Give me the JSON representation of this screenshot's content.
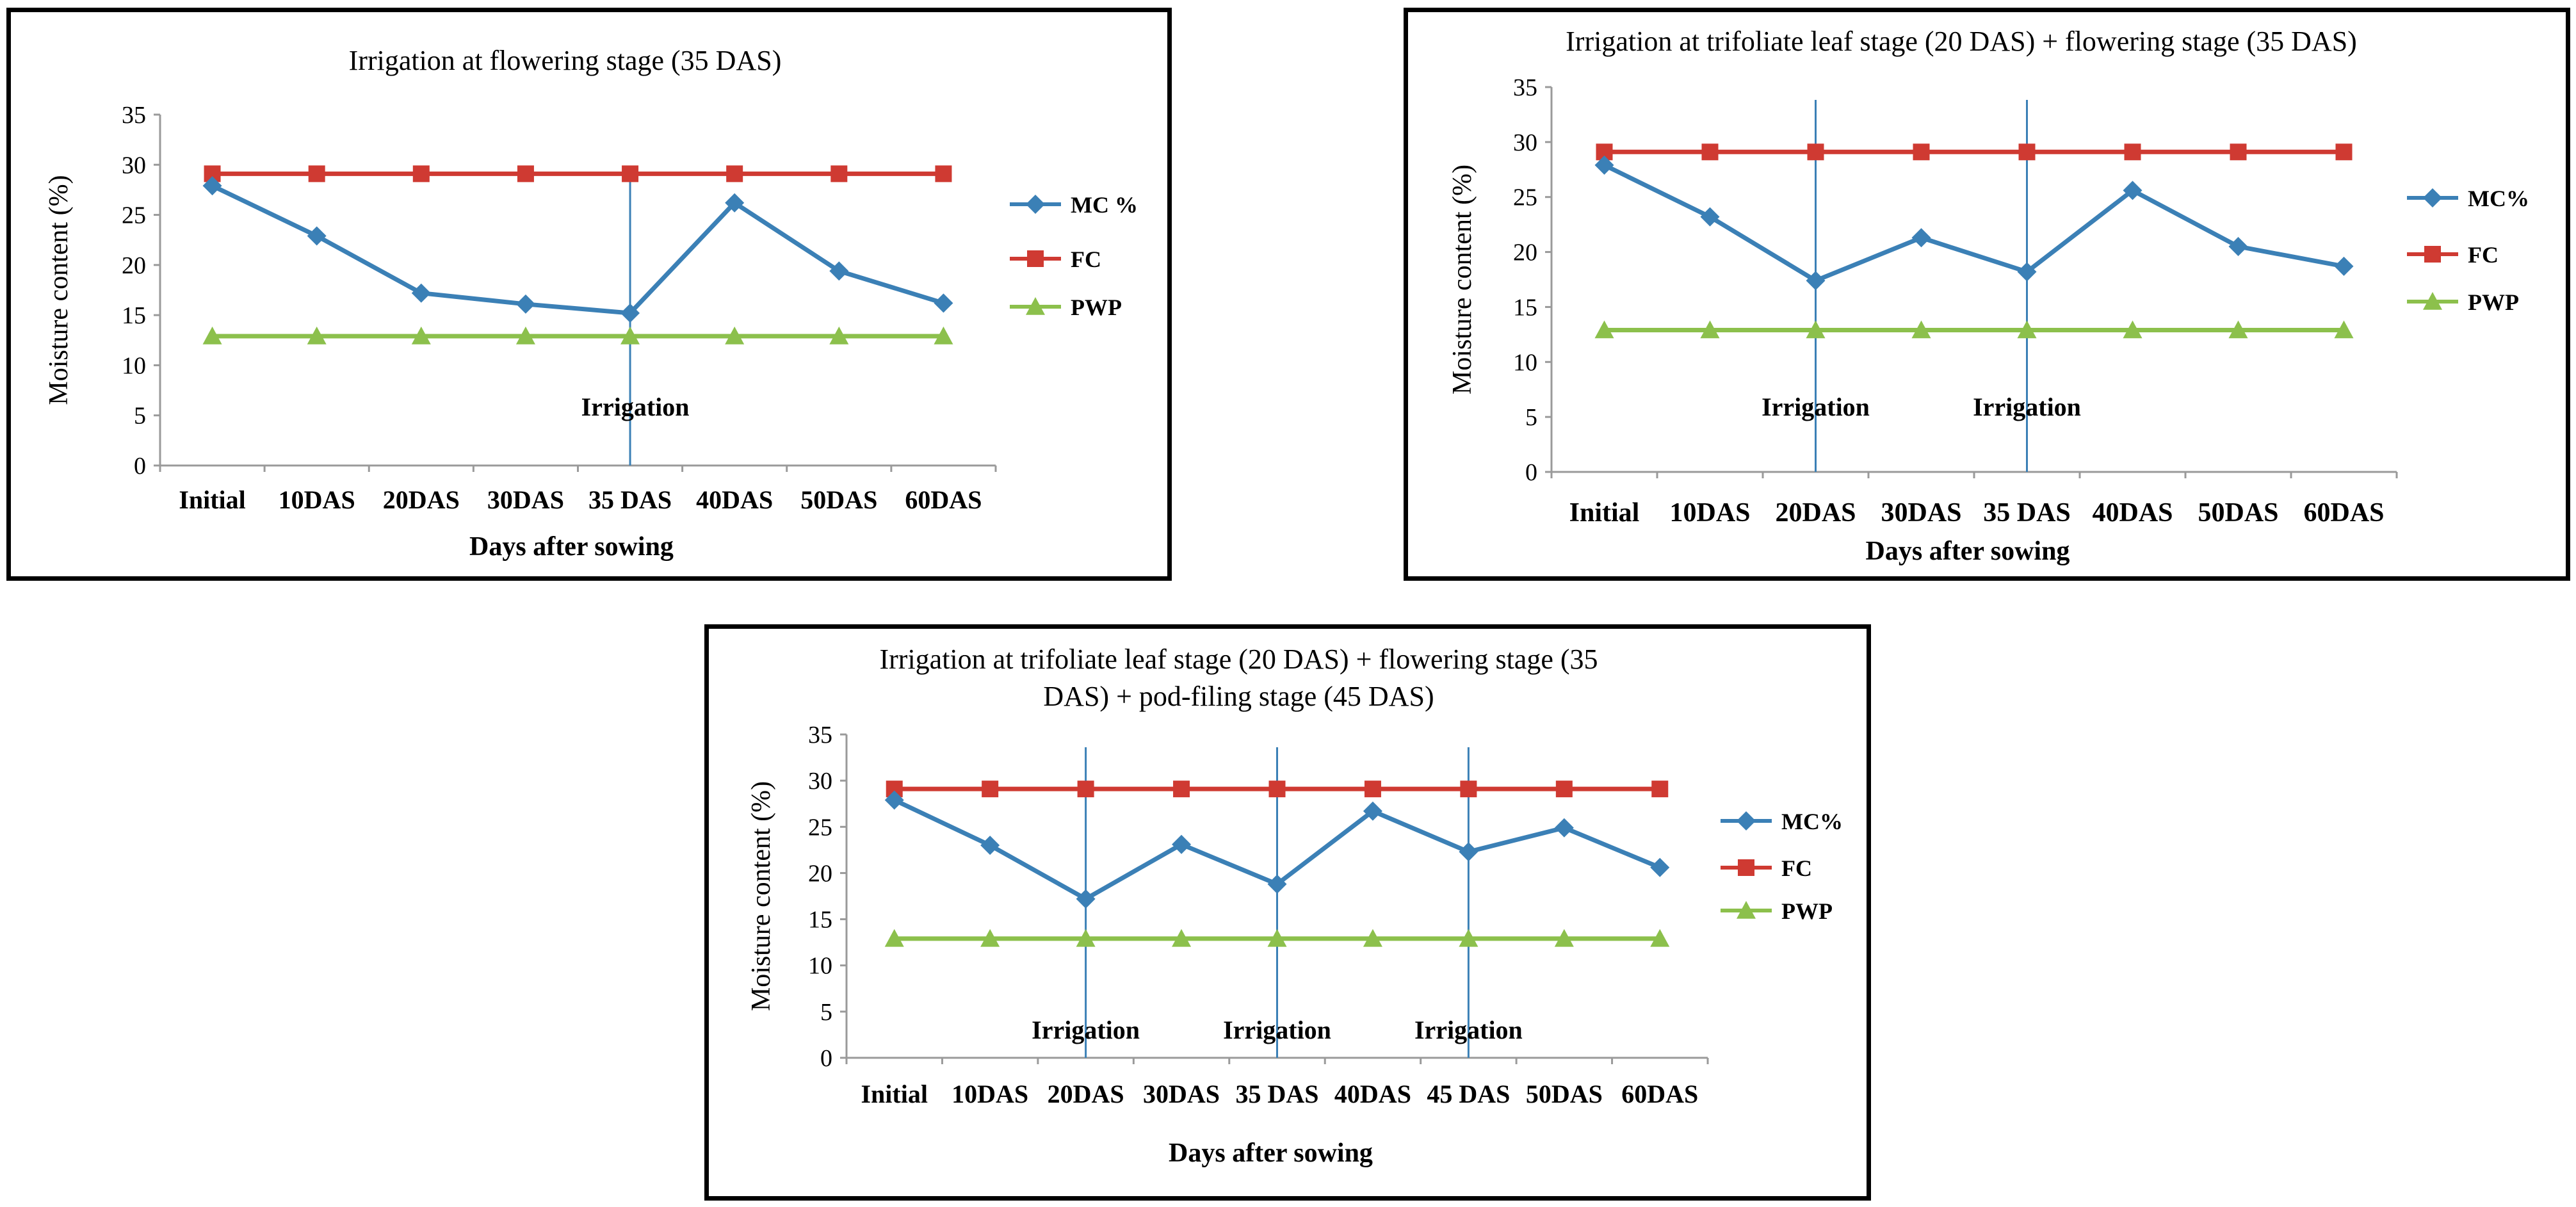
{
  "colors": {
    "mc": "#3b80b6",
    "fc": "#cf3a32",
    "pwp": "#8cc04c",
    "axis": "#9a9a9a",
    "marker_line": "#3b80b6"
  },
  "chart_data": [
    {
      "type": "line",
      "title": [
        "Irrigation  at flowering stage (35 DAS)"
      ],
      "xlabel": "Days after sowing",
      "ylabel": "Moisture content (%)",
      "ylim": [
        0,
        35
      ],
      "yticks": [
        "0",
        "5",
        "10",
        "15",
        "20",
        "25",
        "30",
        "35"
      ],
      "categories": [
        "Initial",
        "10DAS",
        "20DAS",
        "30DAS",
        "35 DAS",
        "40DAS",
        "50DAS",
        "60DAS"
      ],
      "series": [
        {
          "name": "MC %",
          "values": [
            27.9,
            22.9,
            17.2,
            16.1,
            15.2,
            26.2,
            19.4,
            16.2
          ]
        },
        {
          "name": "FC",
          "values": [
            29.1,
            29.1,
            29.1,
            29.1,
            29.1,
            29.1,
            29.1,
            29.1
          ]
        },
        {
          "name": "PWP",
          "values": [
            12.9,
            12.9,
            12.9,
            12.9,
            12.9,
            12.9,
            12.9,
            12.9
          ]
        }
      ],
      "annotations": [
        {
          "text": "Irrigation",
          "category_index": 4
        }
      ]
    },
    {
      "type": "line",
      "title": [
        "Irrigation at trifoliate leaf stage (20 DAS) + flowering stage (35 DAS)"
      ],
      "xlabel": "Days after sowing",
      "ylabel": "Moisture content (%)",
      "ylim": [
        0,
        35
      ],
      "yticks": [
        "0",
        "5",
        "10",
        "15",
        "20",
        "25",
        "30",
        "35"
      ],
      "categories": [
        "Initial",
        "10DAS",
        "20DAS",
        "30DAS",
        "35 DAS",
        "40DAS",
        "50DAS",
        "60DAS"
      ],
      "series": [
        {
          "name": "MC%",
          "values": [
            27.9,
            23.2,
            17.4,
            21.3,
            18.2,
            25.6,
            20.5,
            18.7
          ]
        },
        {
          "name": "FC",
          "values": [
            29.1,
            29.1,
            29.1,
            29.1,
            29.1,
            29.1,
            29.1,
            29.1
          ]
        },
        {
          "name": "PWP",
          "values": [
            12.9,
            12.9,
            12.9,
            12.9,
            12.9,
            12.9,
            12.9,
            12.9
          ]
        }
      ],
      "annotations": [
        {
          "text": "Irrigation",
          "category_index": 2
        },
        {
          "text": "Irrigation",
          "category_index": 4
        }
      ]
    },
    {
      "type": "line",
      "title": [
        "Irrigation at trifoliate leaf stage (20 DAS) + flowering stage (35",
        "DAS) + pod-filing stage (45 DAS)"
      ],
      "xlabel": "Days after sowing",
      "ylabel": "Moisture content (%)",
      "ylim": [
        0,
        35
      ],
      "yticks": [
        "0",
        "5",
        "10",
        "15",
        "20",
        "25",
        "30",
        "35"
      ],
      "categories": [
        "Initial",
        "10DAS",
        "20DAS",
        "30DAS",
        "35 DAS",
        "40DAS",
        "45 DAS",
        "50DAS",
        "60DAS"
      ],
      "series": [
        {
          "name": "MC%",
          "values": [
            27.9,
            23.0,
            17.2,
            23.1,
            18.8,
            26.7,
            22.3,
            24.9,
            20.6
          ]
        },
        {
          "name": "FC",
          "values": [
            29.1,
            29.1,
            29.1,
            29.1,
            29.1,
            29.1,
            29.1,
            29.1,
            29.1
          ]
        },
        {
          "name": "PWP",
          "values": [
            12.9,
            12.9,
            12.9,
            12.9,
            12.9,
            12.9,
            12.9,
            12.9,
            12.9
          ]
        }
      ],
      "annotations": [
        {
          "text": "Irrigation",
          "category_index": 2
        },
        {
          "text": "Irrigation",
          "category_index": 4
        },
        {
          "text": "Irrigation",
          "category_index": 6
        }
      ]
    }
  ]
}
